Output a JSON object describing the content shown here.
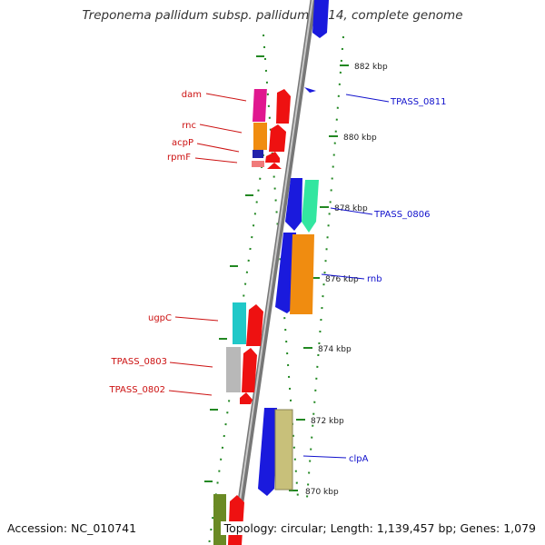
{
  "title": "Treponema pallidum subsp. pallidum SS14, complete genome",
  "accession_text": "Accession: NC_010741",
  "summary_text": "Topology: circular; Length: 1,139,457 bp; Genes: 1,079",
  "scale_labels": [
    "882 kbp",
    "880 kbp",
    "878 kbp",
    "876 kbp",
    "874 kbp",
    "872 kbp",
    "870 kbp"
  ],
  "left_gene_labels": [
    "dam",
    "rnc",
    "acpP",
    "rpmF",
    "ugpC",
    "TPASS_0803",
    "TPASS_0802"
  ],
  "right_gene_labels": [
    "TPASS_0811",
    "TPASS_0806",
    "rnb",
    "clpA"
  ],
  "colors": {
    "left_label": "#cc1111",
    "right_label": "#1111cc",
    "backbone": "#8a8a8a",
    "tick": "#228822",
    "strand_arrow": "#ee1111"
  }
}
